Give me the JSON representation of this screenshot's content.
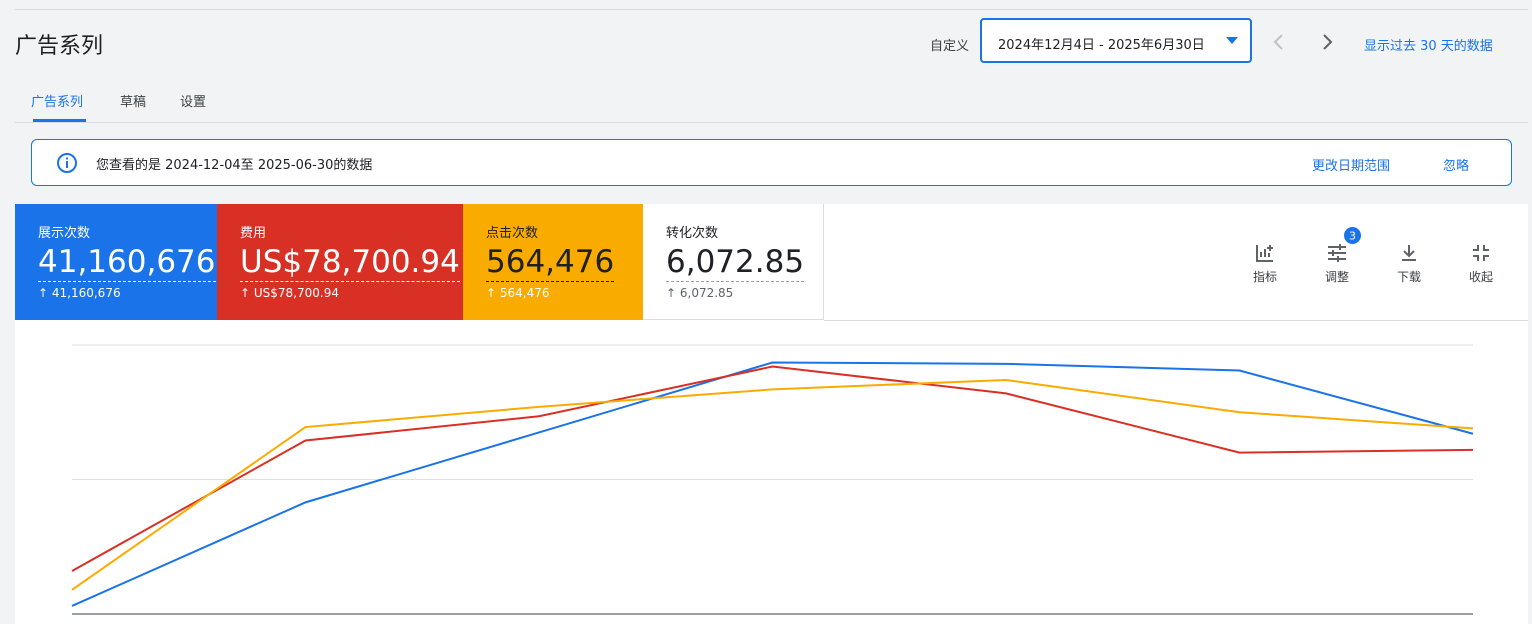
{
  "header": {
    "title": "广告系列",
    "date_label": "自定义",
    "date_range": "2024年12月4日 - 2025年6月30日",
    "recent_link": "显示过去 30 天的数据"
  },
  "tabs": [
    "广告系列",
    "草稿",
    "设置"
  ],
  "banner": {
    "text": "您查看的是 2024-12-04至 2025-06-30的数据",
    "actions": [
      "更改日期范围",
      "忽略"
    ]
  },
  "metrics": [
    {
      "label": "展示次数",
      "value": "41,160,676",
      "change": "41,160,676"
    },
    {
      "label": "费用",
      "value": "US$78,700.94",
      "change": "US$78,700.94"
    },
    {
      "label": "点击次数",
      "value": "564,476",
      "change": "564,476"
    },
    {
      "label": "转化次数",
      "value": "6,072.85",
      "change": "6,072.85"
    }
  ],
  "toolbar": {
    "buttons": [
      "指标",
      "调整",
      "下载",
      "收起"
    ],
    "badge": "3"
  },
  "chart_data": {
    "type": "line",
    "categories": [
      null,
      null,
      null,
      null,
      null,
      null,
      null
    ],
    "series": [
      {
        "color": "#1a73e8",
        "values": [
          0.06,
          0.83,
          1.35,
          1.87,
          1.86,
          1.81,
          1.34
        ]
      },
      {
        "color": "#d93025",
        "values": [
          0.32,
          1.29,
          1.47,
          1.84,
          1.64,
          1.2,
          1.22
        ]
      },
      {
        "color": "#f9ab00",
        "values": [
          0.18,
          1.39,
          1.54,
          1.67,
          1.74,
          1.5,
          1.38
        ]
      }
    ],
    "ylim": [
      0,
      2
    ],
    "grid": [
      0,
      1,
      2
    ]
  }
}
